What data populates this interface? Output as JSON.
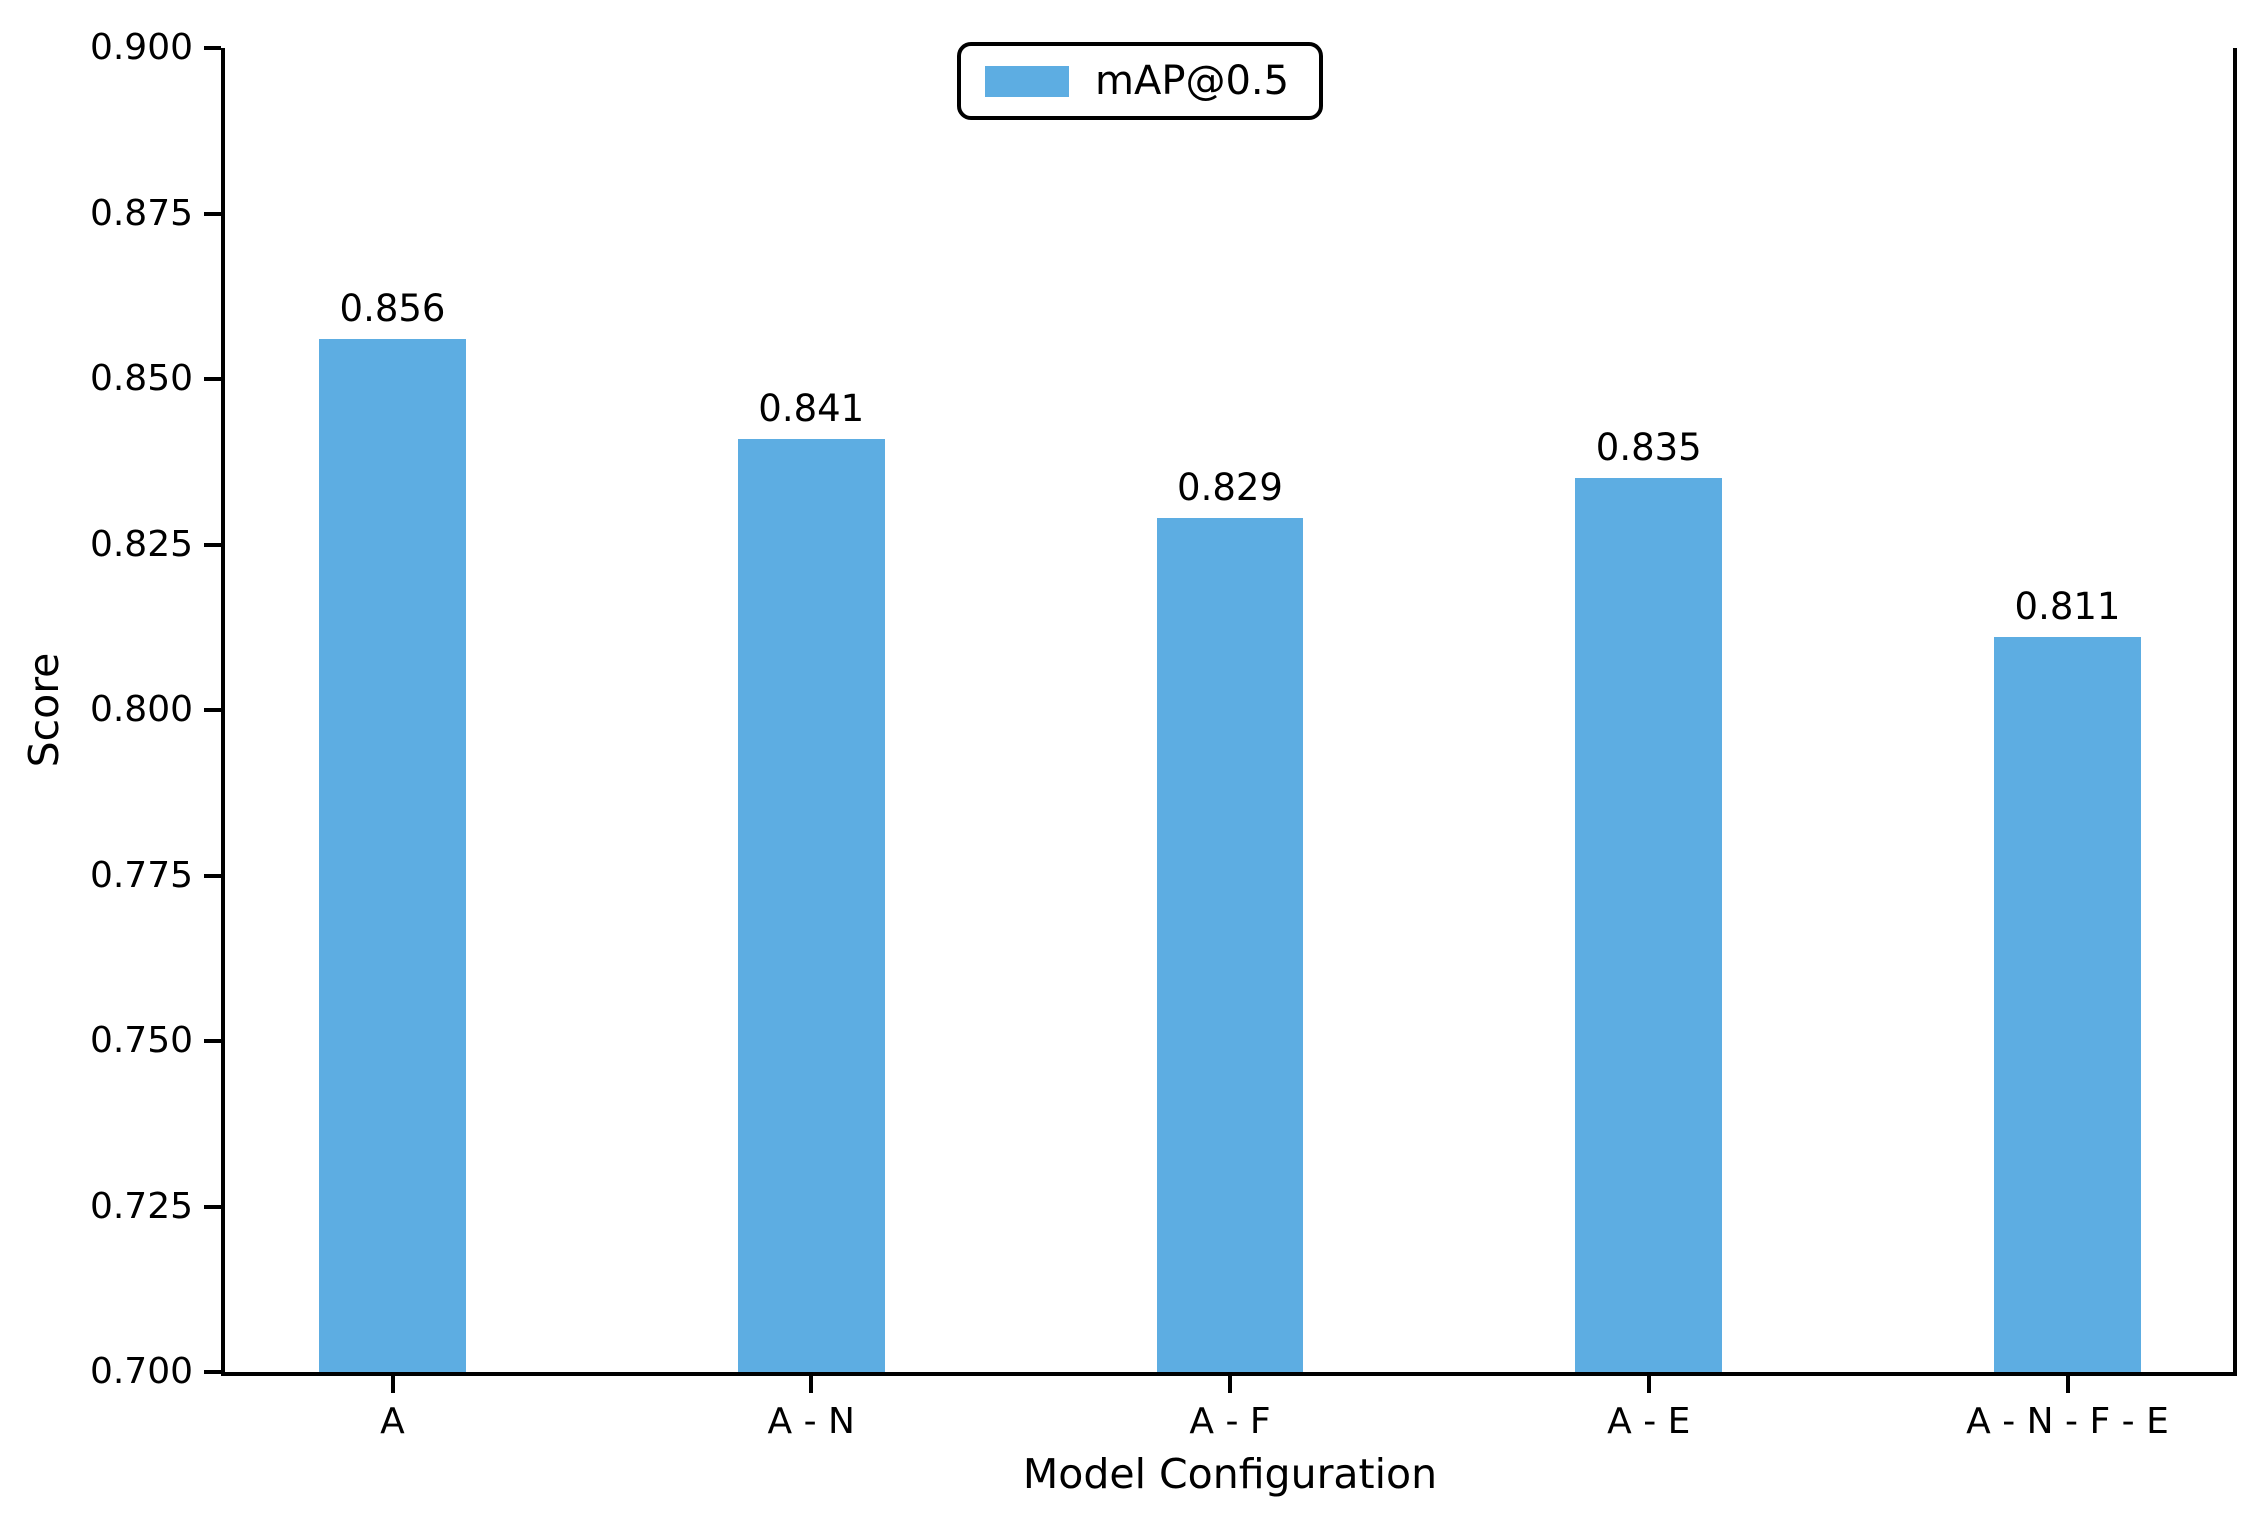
{
  "chart_data": {
    "type": "bar",
    "title": "",
    "categories": [
      "A",
      "A - N",
      "A - F",
      "A - E",
      "A - N - F - E"
    ],
    "values": [
      0.856,
      0.841,
      0.829,
      0.835,
      0.811
    ],
    "bar_labels": [
      "0.856",
      "0.841",
      "0.829",
      "0.835",
      "0.811"
    ],
    "series_name": "mAP@0.5",
    "xlabel": "Model Configuration",
    "ylabel": "Score",
    "ylim": [
      0.7,
      0.9
    ],
    "ytick_labels": [
      "0.700",
      "0.725",
      "0.750",
      "0.775",
      "0.800",
      "0.825",
      "0.850",
      "0.875",
      "0.900"
    ],
    "grid": false,
    "legend_position": "upper center",
    "bar_color": "#5DADE2",
    "axis_color": "#000000",
    "text_color": "#000000"
  }
}
